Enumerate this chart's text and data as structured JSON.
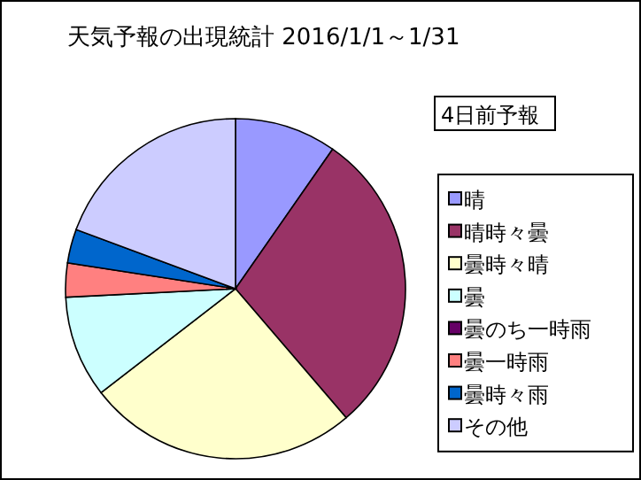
{
  "chart_data": {
    "type": "pie",
    "title": "天気予報の出現統計 2016/1/1～1/31",
    "subtitle": "4日前予報",
    "categories": [
      "晴",
      "晴時々曇",
      "曇時々晴",
      "曇",
      "曇のち一時雨",
      "曇一時雨",
      "曇時々雨",
      "その他"
    ],
    "values": [
      9.68,
      29.03,
      25.81,
      9.68,
      0,
      3.23,
      3.23,
      19.34
    ],
    "colors": [
      "#9999ff",
      "#993366",
      "#ffffcc",
      "#ccffff",
      "#660066",
      "#ff8080",
      "#0066cc",
      "#ccccff"
    ],
    "legend": "right"
  }
}
